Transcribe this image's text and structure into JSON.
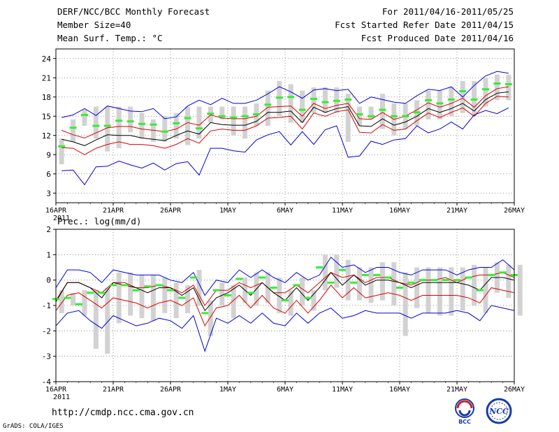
{
  "header": {
    "title": "DERF/NCC/BCC Monthly Forecast",
    "member_size": "Member Size=40",
    "variable": "Mean Surf. Temp.: °C",
    "period": "For 2011/04/16-2011/05/25",
    "refer_date": "Fcst Started Refer Date 2011/04/15",
    "produced_date": "Fcst Produced Date 2011/04/16"
  },
  "precip_label": "Prec.: log(mm/d)",
  "footer": {
    "url": "http://cmdp.ncc.cma.gov.cn",
    "grads": "GrADS: COLA/IGES",
    "logo_bcc": "BCC",
    "logo_ncc": "NCC"
  },
  "colors": {
    "envelope": "#0000dd",
    "spread": "#dd0000",
    "mean": "#000000",
    "median": "#33ee33",
    "box": "#d2d2d2"
  },
  "chart_data": [
    {
      "type": "line",
      "name": "temperature",
      "days": 40,
      "x_tick_labels": [
        "16APR",
        "21APR",
        "26APR",
        "1MAY",
        "6MAY",
        "11MAY",
        "16MAY",
        "21MAY",
        "26MAY"
      ],
      "x_tick_days": [
        0,
        5,
        10,
        15,
        20,
        25,
        30,
        35,
        40
      ],
      "x_year_label": "2011",
      "y_ticks": [
        3,
        6,
        9,
        12,
        15,
        18,
        21,
        24
      ],
      "ylim": [
        1.5,
        25.5
      ],
      "series": [
        {
          "name": "max",
          "values": [
            14.8,
            15.2,
            16.2,
            15.1,
            16.6,
            16.2,
            15.8,
            15.7,
            16.2,
            14.6,
            14.9,
            16.6,
            17.5,
            16.8,
            17.8,
            17.0,
            17.0,
            17.5,
            18.5,
            19.6,
            18.8,
            17.8,
            19.1,
            19.3,
            19.0,
            19.2,
            17.0,
            18.0,
            17.6,
            17.2,
            17.0,
            18.2,
            19.2,
            19.0,
            19.6,
            18.0,
            19.8,
            21.3,
            22.0,
            21.7
          ]
        },
        {
          "name": "upper",
          "values": [
            12.8,
            12.1,
            11.6,
            12.4,
            13.2,
            13.4,
            13.4,
            13.0,
            12.8,
            12.6,
            13.0,
            14.0,
            13.6,
            15.2,
            14.7,
            14.6,
            14.6,
            15.0,
            16.4,
            16.5,
            16.6,
            15.0,
            17.0,
            16.2,
            16.7,
            17.0,
            14.6,
            14.5,
            15.6,
            14.5,
            15.0,
            16.0,
            17.1,
            16.4,
            17.0,
            17.8,
            16.4,
            18.2,
            19.3,
            19.6
          ]
        },
        {
          "name": "mean",
          "values": [
            11.4,
            11.0,
            10.4,
            11.3,
            12.1,
            12.0,
            12.0,
            11.6,
            11.4,
            11.2,
            12.0,
            12.7,
            12.2,
            14.0,
            13.7,
            13.6,
            13.6,
            14.2,
            15.6,
            15.6,
            15.8,
            14.0,
            16.4,
            15.6,
            16.2,
            16.5,
            13.5,
            13.4,
            14.6,
            13.6,
            14.1,
            15.0,
            16.2,
            15.6,
            16.2,
            17.0,
            15.8,
            17.6,
            18.6,
            18.8
          ]
        },
        {
          "name": "lower",
          "values": [
            10.1,
            10.0,
            9.0,
            10.0,
            10.6,
            11.0,
            10.6,
            10.6,
            10.4,
            10.0,
            10.6,
            11.5,
            10.8,
            12.7,
            13.0,
            12.8,
            12.8,
            13.5,
            14.7,
            14.8,
            15.0,
            13.0,
            15.5,
            15.0,
            15.7,
            16.0,
            12.5,
            12.4,
            13.7,
            12.8,
            13.0,
            14.3,
            15.5,
            14.8,
            15.6,
            16.3,
            15.0,
            17.0,
            18.1,
            18.0
          ]
        },
        {
          "name": "min",
          "values": [
            6.5,
            6.6,
            4.3,
            7.1,
            7.2,
            8.0,
            7.4,
            6.9,
            7.7,
            6.6,
            7.6,
            7.9,
            5.8,
            10.0,
            10.0,
            9.6,
            9.4,
            11.3,
            12.1,
            12.6,
            10.5,
            12.6,
            10.6,
            12.9,
            13.5,
            8.6,
            8.8,
            11.1,
            10.6,
            11.3,
            11.5,
            13.5,
            12.4,
            13.0,
            14.1,
            13.0,
            15.2,
            15.9,
            15.4,
            16.3
          ]
        },
        {
          "name": "median",
          "values": [
            10.3,
            13.2,
            15.2,
            13.5,
            13.5,
            14.3,
            14.2,
            13.8,
            13.7,
            12.6,
            13.9,
            14.7,
            13.1,
            15.4,
            15.0,
            14.8,
            15.0,
            15.3,
            16.8,
            17.9,
            18.0,
            16.0,
            17.7,
            17.2,
            17.4,
            17.6,
            15.3,
            15.0,
            16.0,
            15.0,
            15.0,
            15.6,
            17.5,
            17.0,
            17.6,
            18.9,
            17.6,
            19.2,
            20.1,
            20.0
          ]
        }
      ],
      "box_low": [
        7.5,
        11.0,
        13.5,
        11.5,
        9.5,
        10.0,
        12.5,
        11.5,
        11.0,
        11.0,
        11.5,
        10.5,
        11.5,
        14.0,
        14.5,
        12.0,
        11.5,
        13.5,
        13.5,
        15.0,
        14.0,
        14.0,
        15.5,
        15.5,
        15.5,
        11.0,
        13.5,
        14.5,
        13.0,
        12.0,
        13.0,
        13.5,
        14.5,
        14.5,
        15.0,
        15.5,
        15.0,
        16.5,
        17.5,
        17.5
      ],
      "box_high": [
        11.5,
        14.5,
        16.0,
        16.5,
        16.5,
        16.5,
        16.5,
        15.5,
        14.5,
        15.0,
        15.5,
        16.5,
        16.5,
        16.5,
        16.5,
        16.5,
        16.5,
        17.0,
        19.0,
        20.5,
        20.0,
        19.0,
        19.5,
        19.5,
        19.5,
        18.5,
        16.5,
        16.5,
        18.5,
        17.0,
        17.0,
        17.5,
        19.0,
        19.0,
        19.5,
        20.5,
        20.5,
        21.0,
        21.5,
        21.5
      ]
    },
    {
      "type": "line",
      "name": "precipitation",
      "days": 40,
      "x_tick_labels": [
        "16APR",
        "21APR",
        "26APR",
        "1MAY",
        "6MAY",
        "11MAY",
        "16MAY",
        "21MAY",
        "26MAY"
      ],
      "x_tick_days": [
        0,
        5,
        10,
        15,
        20,
        25,
        30,
        35,
        40
      ],
      "x_year_label": "2011",
      "y_ticks": [
        -4,
        -3,
        -2,
        -1,
        0,
        1,
        2
      ],
      "ylim": [
        -4,
        2
      ],
      "series": [
        {
          "name": "max",
          "values": [
            -0.3,
            0.4,
            0.4,
            0.3,
            -0.1,
            0.4,
            0.3,
            0.2,
            0.2,
            0.2,
            0.0,
            -0.1,
            0.3,
            -0.6,
            0.0,
            -0.1,
            0.4,
            0.1,
            0.4,
            0.1,
            -0.1,
            0.3,
            0.0,
            0.2,
            0.9,
            0.5,
            0.6,
            0.3,
            0.5,
            0.5,
            0.3,
            0.2,
            0.4,
            0.4,
            0.4,
            0.2,
            0.4,
            0.5,
            0.5,
            0.8,
            0.4
          ]
        },
        {
          "name": "upper",
          "values": [
            -0.8,
            -0.1,
            -0.1,
            -0.3,
            -0.5,
            -0.1,
            -0.1,
            -0.3,
            -0.3,
            -0.2,
            -0.3,
            -0.5,
            -0.2,
            -1.0,
            -0.4,
            -0.4,
            -0.1,
            -0.3,
            -0.1,
            -0.5,
            -0.5,
            -0.2,
            -0.5,
            -0.1,
            0.3,
            0.1,
            0.2,
            -0.1,
            0.1,
            0.1,
            -0.1,
            -0.2,
            0.0,
            0.0,
            0.1,
            -0.1,
            0.1,
            0.2,
            0.2,
            0.3,
            0.1
          ]
        },
        {
          "name": "mean",
          "values": [
            -0.85,
            -0.1,
            -0.1,
            -0.3,
            -0.7,
            -0.1,
            -0.2,
            -0.3,
            -0.5,
            -0.3,
            -0.3,
            -0.6,
            -0.3,
            -1.2,
            -0.7,
            -0.5,
            -0.2,
            -0.6,
            -0.1,
            -0.5,
            -0.8,
            -0.3,
            -0.8,
            -0.3,
            0.3,
            -0.2,
            0.2,
            -0.2,
            0.0,
            0.0,
            -0.1,
            -0.3,
            -0.1,
            -0.1,
            -0.1,
            -0.1,
            -0.2,
            -0.4,
            0.1,
            0.1,
            0.0
          ]
        },
        {
          "name": "lower",
          "values": [
            -1.2,
            -0.6,
            -0.5,
            -0.8,
            -1.1,
            -0.7,
            -0.8,
            -0.9,
            -1.1,
            -0.9,
            -0.8,
            -1.0,
            -0.7,
            -1.8,
            -1.1,
            -1.0,
            -0.6,
            -1.1,
            -0.6,
            -1.1,
            -1.3,
            -0.8,
            -1.3,
            -0.8,
            -0.2,
            -0.7,
            -0.3,
            -0.7,
            -0.6,
            -0.5,
            -0.6,
            -0.8,
            -0.6,
            -0.6,
            -0.6,
            -0.6,
            -0.7,
            -0.9,
            -0.3,
            -0.4,
            -0.5
          ]
        },
        {
          "name": "min",
          "values": [
            -1.8,
            -1.3,
            -1.2,
            -1.6,
            -1.9,
            -1.4,
            -1.6,
            -1.8,
            -1.7,
            -1.5,
            -1.6,
            -1.9,
            -1.4,
            -2.8,
            -1.5,
            -1.7,
            -1.4,
            -1.7,
            -1.3,
            -1.7,
            -1.8,
            -1.3,
            -1.7,
            -1.3,
            -1.1,
            -1.5,
            -1.4,
            -1.2,
            -1.3,
            -1.3,
            -1.3,
            -1.5,
            -1.3,
            -1.3,
            -1.3,
            -1.2,
            -1.3,
            -1.6,
            -1.0,
            -1.1,
            -1.2
          ]
        },
        {
          "name": "median",
          "values": [
            -0.75,
            -0.7,
            -0.95,
            -0.5,
            -0.5,
            -0.2,
            -0.2,
            -0.4,
            -0.25,
            -0.2,
            -0.4,
            -0.7,
            0.1,
            -1.3,
            -0.4,
            -0.6,
            0.05,
            -0.5,
            0.1,
            -0.3,
            -0.8,
            -0.2,
            -0.7,
            0.5,
            -0.1,
            0.4,
            -0.1,
            0.2,
            0.2,
            0.1,
            -0.3,
            -0.1,
            0.0,
            0.0,
            0.0,
            0.0,
            0.1,
            -0.4,
            0.2,
            0.3,
            0.2
          ]
        }
      ],
      "box_low": [
        -1.3,
        -1.0,
        -1.4,
        -2.7,
        -2.9,
        -1.7,
        -1.4,
        -1.5,
        -1.6,
        -1.3,
        -1.5,
        -1.3,
        -1.0,
        -2.2,
        -1.0,
        -1.5,
        -0.9,
        -1.0,
        -0.9,
        -1.3,
        -1.4,
        -1.0,
        -1.2,
        -0.4,
        -0.3,
        -0.8,
        -0.8,
        -0.9,
        -0.8,
        -1.0,
        -2.2,
        -1.1,
        -1.3,
        -1.4,
        -1.4,
        -1.2,
        -1.0,
        -1.3,
        -0.5,
        -0.7,
        -1.4
      ],
      "box_high": [
        -0.4,
        -0.5,
        -0.4,
        -0.4,
        -0.3,
        0.3,
        0.3,
        0.2,
        0.2,
        0.1,
        -0.1,
        -0.2,
        0.4,
        -0.8,
        -0.1,
        -0.2,
        0.1,
        0.3,
        0.3,
        0.1,
        -0.4,
        0.1,
        -0.4,
        1.0,
        1.0,
        0.8,
        0.5,
        0.5,
        0.7,
        0.7,
        0.3,
        0.5,
        0.5,
        0.5,
        0.5,
        0.5,
        0.6,
        0.5,
        0.7,
        0.6,
        0.6
      ]
    }
  ]
}
